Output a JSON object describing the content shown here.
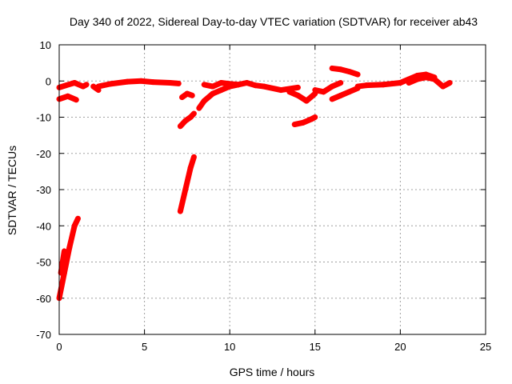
{
  "chart_data": {
    "type": "scatter",
    "title": "Day 340 of 2022, Sidereal Day-to-day VTEC variation (SDTVAR) for receiver ab43",
    "xlabel": "GPS time / hours",
    "ylabel": "SDTVAR / TECUs",
    "xlim": [
      0,
      25
    ],
    "ylim": [
      -70,
      10
    ],
    "xticks": [
      0,
      5,
      10,
      15,
      20,
      25
    ],
    "yticks": [
      10,
      0,
      -10,
      -20,
      -30,
      -40,
      -50,
      -60,
      -70
    ],
    "marker": "+",
    "color": "#ff0000",
    "grid": true,
    "series": [
      {
        "name": "SDTVAR",
        "segments": [
          {
            "x": [
              0.0,
              0.3,
              0.6,
              0.9,
              1.1
            ],
            "y": [
              -60.0,
              -53.0,
              -46.0,
              -40.0,
              -38.0
            ]
          },
          {
            "x": [
              0.1,
              0.3
            ],
            "y": [
              -53.0,
              -47.0
            ]
          },
          {
            "x": [
              0.0,
              0.5,
              1.0
            ],
            "y": [
              -5.0,
              -4.2,
              -5.2
            ]
          },
          {
            "x": [
              0.0,
              0.4,
              0.9,
              1.4,
              1.6
            ],
            "y": [
              -1.8,
              -1.2,
              -0.5,
              -1.5,
              -1.0
            ]
          },
          {
            "x": [
              2.0,
              2.3
            ],
            "y": [
              -1.5,
              -2.5
            ]
          },
          {
            "x": [
              2.3,
              3.0,
              4.0,
              4.8,
              5.5,
              6.5,
              7.0
            ],
            "y": [
              -1.5,
              -0.8,
              -0.2,
              0.0,
              -0.3,
              -0.5,
              -0.7
            ]
          },
          {
            "x": [
              7.2,
              7.5,
              7.8
            ],
            "y": [
              -4.5,
              -3.5,
              -4.0
            ]
          },
          {
            "x": [
              7.1,
              7.4,
              7.7,
              7.9
            ],
            "y": [
              -36.0,
              -30.0,
              -24.0,
              -21.0
            ]
          },
          {
            "x": [
              7.1,
              7.4,
              7.7,
              7.9
            ],
            "y": [
              -12.5,
              -11.0,
              -10.0,
              -9.0
            ]
          },
          {
            "x": [
              8.2,
              8.5,
              9.0,
              9.5,
              10.0,
              10.5
            ],
            "y": [
              -7.5,
              -5.5,
              -3.5,
              -2.5,
              -1.5,
              -1.0
            ]
          },
          {
            "x": [
              8.5,
              9.0,
              9.5,
              10.0,
              10.5,
              11.0,
              11.5,
              12.0,
              13.0,
              14.0
            ],
            "y": [
              -1.0,
              -1.5,
              -0.5,
              -0.8,
              -1.0,
              -0.5,
              -1.2,
              -1.5,
              -2.5,
              -1.8
            ]
          },
          {
            "x": [
              13.5,
              14.0,
              14.5,
              15.0
            ],
            "y": [
              -3.0,
              -4.0,
              -5.5,
              -3.5
            ]
          },
          {
            "x": [
              13.8,
              14.3,
              14.8,
              15.0
            ],
            "y": [
              -12.0,
              -11.5,
              -10.5,
              -10.0
            ]
          },
          {
            "x": [
              15.0,
              15.5,
              16.0,
              16.5
            ],
            "y": [
              -2.5,
              -3.0,
              -1.5,
              -0.5
            ]
          },
          {
            "x": [
              16.0,
              16.5,
              17.0,
              17.5
            ],
            "y": [
              -5.0,
              -4.0,
              -3.0,
              -2.0
            ]
          },
          {
            "x": [
              16.0,
              16.5,
              17.0,
              17.5
            ],
            "y": [
              3.5,
              3.2,
              2.6,
              1.8
            ]
          },
          {
            "x": [
              17.5,
              18.0,
              19.0,
              20.0,
              20.5,
              21.0,
              21.5,
              22.0
            ],
            "y": [
              -1.5,
              -1.2,
              -1.0,
              -0.5,
              0.5,
              1.5,
              1.8,
              1.0
            ]
          },
          {
            "x": [
              20.5,
              21.0,
              21.5,
              22.0,
              22.5,
              22.9
            ],
            "y": [
              -0.5,
              0.5,
              1.0,
              0.5,
              -1.5,
              -0.5
            ]
          }
        ]
      }
    ]
  }
}
